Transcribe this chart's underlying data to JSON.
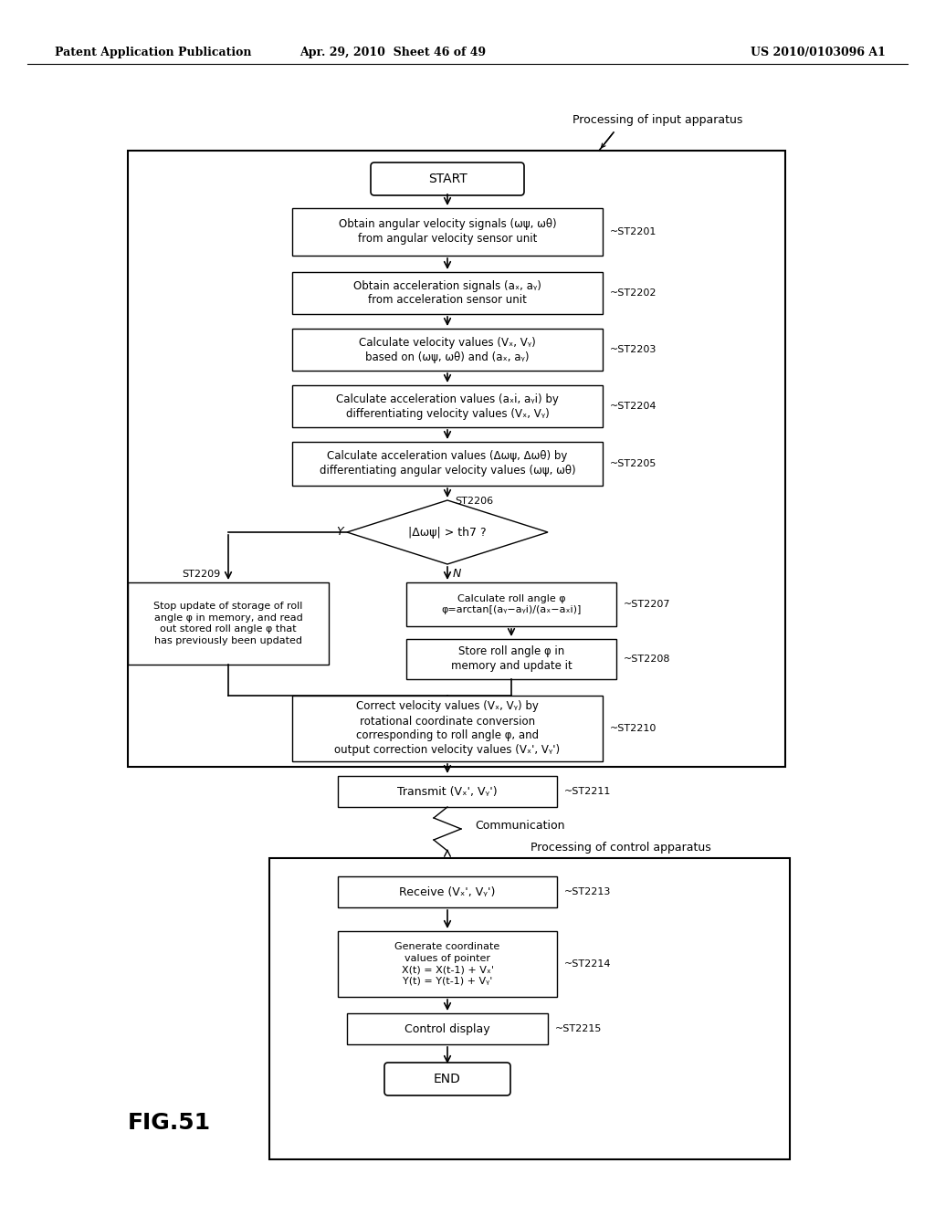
{
  "header_left": "Patent Application Publication",
  "header_center": "Apr. 29, 2010  Sheet 46 of 49",
  "header_right": "US 2010/0103096 A1",
  "fig_label": "FIG.51",
  "bg_color": "#ffffff"
}
